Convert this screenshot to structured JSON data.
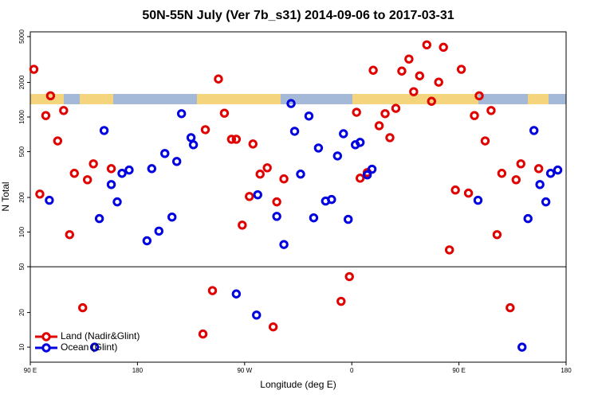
{
  "chart_data": {
    "type": "scatter",
    "title": "50N-55N July (Ver 7b_s31)   2014-09-06 to 2017-03-31",
    "xlabel": "Longitude (deg E)",
    "ylabel": "N Total",
    "xlim": [
      90,
      540
    ],
    "ylim": [
      7.4,
      5500
    ],
    "log_y": true,
    "hline": 50,
    "legend": "lower-left",
    "xticks": [
      {
        "value": 90,
        "label": "90 E"
      },
      {
        "value": 180,
        "label": "180"
      },
      {
        "value": 270,
        "label": "90 W"
      },
      {
        "value": 360,
        "label": "0"
      },
      {
        "value": 450,
        "label": "90 E"
      },
      {
        "value": 540,
        "label": "180"
      }
    ],
    "yticks": [
      10,
      20,
      50,
      100,
      200,
      500,
      1000,
      2000,
      5000
    ],
    "series": [
      {
        "name": "Land (Nadir&Glint)",
        "color": "#e00000",
        "x": [
          93,
          98,
          103,
          107,
          113,
          118,
          123,
          127,
          134,
          138,
          143,
          158,
          235,
          237,
          243,
          248,
          253,
          259,
          263,
          268,
          274,
          277,
          283,
          289,
          294,
          297,
          303,
          351,
          358,
          364,
          367,
          373,
          378,
          383,
          388,
          392,
          397,
          402,
          408,
          412,
          417,
          423,
          427,
          433,
          437,
          442,
          447,
          452,
          458,
          463,
          467,
          472,
          477,
          482,
          486,
          493,
          498,
          502,
          517
        ],
        "values": [
          2600,
          214,
          1030,
          1530,
          620,
          1140,
          95,
          324,
          22,
          285,
          392,
          356,
          13,
          776,
          31,
          2140,
          1080,
          641,
          641,
          115,
          204,
          583,
          319,
          362,
          15,
          183,
          290,
          25,
          41,
          1100,
          294,
          329,
          2550,
          840,
          1070,
          662,
          1190,
          2510,
          3190,
          1660,
          2280,
          4240,
          1370,
          2010,
          4040,
          70,
          232,
          2600,
          218,
          1030,
          1530,
          620,
          1140,
          95,
          324,
          22,
          285,
          392,
          356
        ]
      },
      {
        "name": "Ocean (Glint)",
        "color": "#0000e0",
        "x": [
          106,
          144,
          148,
          152,
          158,
          163,
          167,
          173,
          188,
          192,
          198,
          203,
          209,
          213,
          217,
          225,
          227,
          263,
          281,
          280,
          297,
          303,
          309,
          312,
          317,
          324,
          328,
          332,
          338,
          343,
          348,
          353,
          357,
          363,
          367,
          373,
          377,
          466,
          503,
          508,
          513,
          518,
          523,
          527,
          533
        ],
        "values": [
          189,
          10,
          131,
          764,
          259,
          183,
          324,
          346,
          84,
          356,
          102,
          482,
          135,
          411,
          1070,
          662,
          574,
          29,
          211,
          19,
          137,
          78,
          1310,
          752,
          319,
          1020,
          133,
          538,
          186,
          192,
          459,
          716,
          129,
          574,
          602,
          314,
          352,
          189,
          10,
          131,
          764,
          259,
          183,
          324,
          346
        ]
      }
    ]
  }
}
